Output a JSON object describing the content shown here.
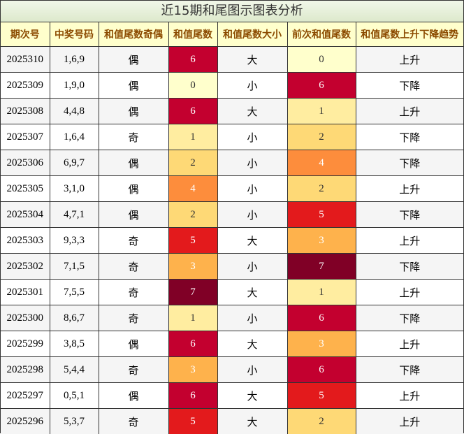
{
  "title": "近15期和尾图示图表分析",
  "headers": [
    "期次号",
    "中奖号码",
    "和值尾数奇偶",
    "和值尾数",
    "和值尾数大小",
    "前次和值尾数",
    "和值尾数上升下降趋势"
  ],
  "colors": {
    "0": "#ffffcc",
    "1": "#ffeda0",
    "2": "#fed976",
    "3": "#feb24c",
    "4": "#fd8d3c",
    "5": "#e31a1c",
    "6": "#c3002f",
    "7": "#800026"
  },
  "dark_text": [
    "0",
    "1",
    "2"
  ],
  "rows": [
    {
      "period": "2025310",
      "numbers": "1,6,9",
      "parity": "偶",
      "tail": "6",
      "size": "大",
      "prev": "0",
      "trend": "上升"
    },
    {
      "period": "2025309",
      "numbers": "1,9,0",
      "parity": "偶",
      "tail": "0",
      "size": "小",
      "prev": "6",
      "trend": "下降"
    },
    {
      "period": "2025308",
      "numbers": "4,4,8",
      "parity": "偶",
      "tail": "6",
      "size": "大",
      "prev": "1",
      "trend": "上升"
    },
    {
      "period": "2025307",
      "numbers": "1,6,4",
      "parity": "奇",
      "tail": "1",
      "size": "小",
      "prev": "2",
      "trend": "下降"
    },
    {
      "period": "2025306",
      "numbers": "6,9,7",
      "parity": "偶",
      "tail": "2",
      "size": "小",
      "prev": "4",
      "trend": "下降"
    },
    {
      "period": "2025305",
      "numbers": "3,1,0",
      "parity": "偶",
      "tail": "4",
      "size": "小",
      "prev": "2",
      "trend": "上升"
    },
    {
      "period": "2025304",
      "numbers": "4,7,1",
      "parity": "偶",
      "tail": "2",
      "size": "小",
      "prev": "5",
      "trend": "下降"
    },
    {
      "period": "2025303",
      "numbers": "9,3,3",
      "parity": "奇",
      "tail": "5",
      "size": "大",
      "prev": "3",
      "trend": "上升"
    },
    {
      "period": "2025302",
      "numbers": "7,1,5",
      "parity": "奇",
      "tail": "3",
      "size": "小",
      "prev": "7",
      "trend": "下降"
    },
    {
      "period": "2025301",
      "numbers": "7,5,5",
      "parity": "奇",
      "tail": "7",
      "size": "大",
      "prev": "1",
      "trend": "上升"
    },
    {
      "period": "2025300",
      "numbers": "8,6,7",
      "parity": "奇",
      "tail": "1",
      "size": "小",
      "prev": "6",
      "trend": "下降"
    },
    {
      "period": "2025299",
      "numbers": "3,8,5",
      "parity": "偶",
      "tail": "6",
      "size": "大",
      "prev": "3",
      "trend": "上升"
    },
    {
      "period": "2025298",
      "numbers": "5,4,4",
      "parity": "奇",
      "tail": "3",
      "size": "小",
      "prev": "6",
      "trend": "下降"
    },
    {
      "period": "2025297",
      "numbers": "0,5,1",
      "parity": "偶",
      "tail": "6",
      "size": "大",
      "prev": "5",
      "trend": "上升"
    },
    {
      "period": "2025296",
      "numbers": "5,3,7",
      "parity": "奇",
      "tail": "5",
      "size": "大",
      "prev": "2",
      "trend": "上升"
    }
  ]
}
